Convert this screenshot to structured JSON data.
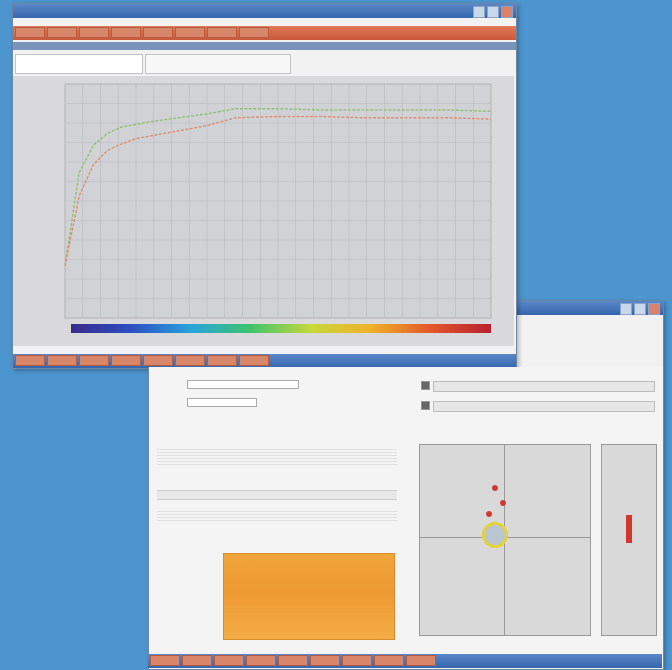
{
  "main_window": {
    "title": "",
    "toolbar": [
      "",
      "",
      "",
      "",
      "",
      "",
      "",
      ""
    ],
    "tabs": [
      "",
      ""
    ],
    "status_buttons": [
      "",
      "",
      "",
      "",
      "",
      "",
      "",
      ""
    ]
  },
  "detail_window": {
    "fields": [
      {
        "label": "",
        "value": ""
      },
      {
        "label": "",
        "value": ""
      }
    ],
    "table1": {
      "header": [
        "",
        "",
        "",
        "",
        ""
      ],
      "rows": [
        [
          "",
          "",
          "",
          "",
          ""
        ],
        [
          "",
          "",
          "",
          "",
          ""
        ],
        [
          "",
          "",
          "",
          "",
          ""
        ],
        [
          "",
          "",
          "",
          "",
          ""
        ],
        [
          "",
          "",
          "",
          "",
          ""
        ]
      ]
    },
    "table2": {
      "header": [
        "",
        "",
        "",
        "",
        ""
      ],
      "rows": [
        [
          "",
          "",
          "",
          "",
          ""
        ],
        [
          "",
          "",
          "",
          "",
          ""
        ],
        [
          "",
          "",
          "",
          "",
          ""
        ]
      ]
    },
    "status_buttons": [
      "",
      "",
      "",
      "",
      "",
      "",
      "",
      "",
      ""
    ]
  },
  "chart_data": {
    "type": "line",
    "x": [
      0,
      1,
      2,
      3,
      4,
      5,
      6,
      8,
      10,
      12,
      15,
      18,
      21,
      24,
      27,
      30
    ],
    "series": [
      {
        "values": [
          200,
          560,
          665,
          710,
          735,
          745,
          755,
          770,
          785,
          805,
          805,
          800,
          800,
          800,
          800,
          795
        ],
        "color": "#8bbf6a"
      },
      {
        "values": [
          200,
          470,
          590,
          645,
          670,
          690,
          700,
          720,
          740,
          770,
          775,
          775,
          770,
          770,
          770,
          765
        ],
        "color": "#dc8a6a"
      }
    ],
    "xlim": [
      0,
      30
    ],
    "ylim": [
      0,
      900
    ],
    "grid": true,
    "colorbar": [
      "#3a2a8c",
      "#2c4fc2",
      "#2aa3dc",
      "#3fc46a",
      "#c7d83a",
      "#f0b12a",
      "#e2572b",
      "#b8202f"
    ]
  }
}
